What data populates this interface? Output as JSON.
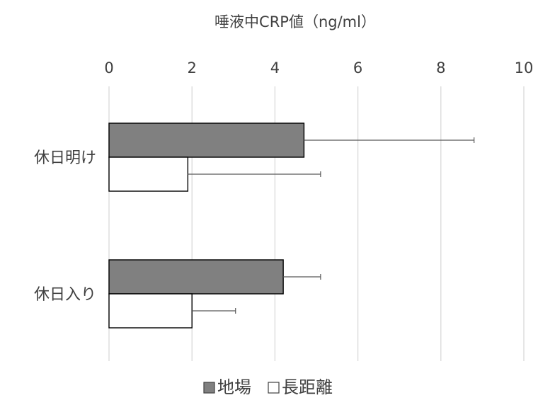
{
  "chart_data": {
    "type": "bar",
    "orientation": "horizontal",
    "title": "唾液中CRP値（ng/ml）",
    "xlabel": "",
    "ylabel": "",
    "x_axis_position": "top",
    "xlim": [
      0,
      10
    ],
    "xticks": [
      0,
      2,
      4,
      6,
      8,
      10
    ],
    "grid": "vertical",
    "legend": "bottom",
    "categories": [
      "休日明け",
      "休日入り"
    ],
    "series": [
      {
        "name": "地場",
        "values": [
          4.7,
          4.2
        ],
        "error": [
          4.1,
          0.9
        ],
        "color": "#808080"
      },
      {
        "name": "長距離",
        "values": [
          1.9,
          2.0
        ],
        "error": [
          3.2,
          1.05
        ],
        "color": "#ffffff"
      }
    ]
  }
}
